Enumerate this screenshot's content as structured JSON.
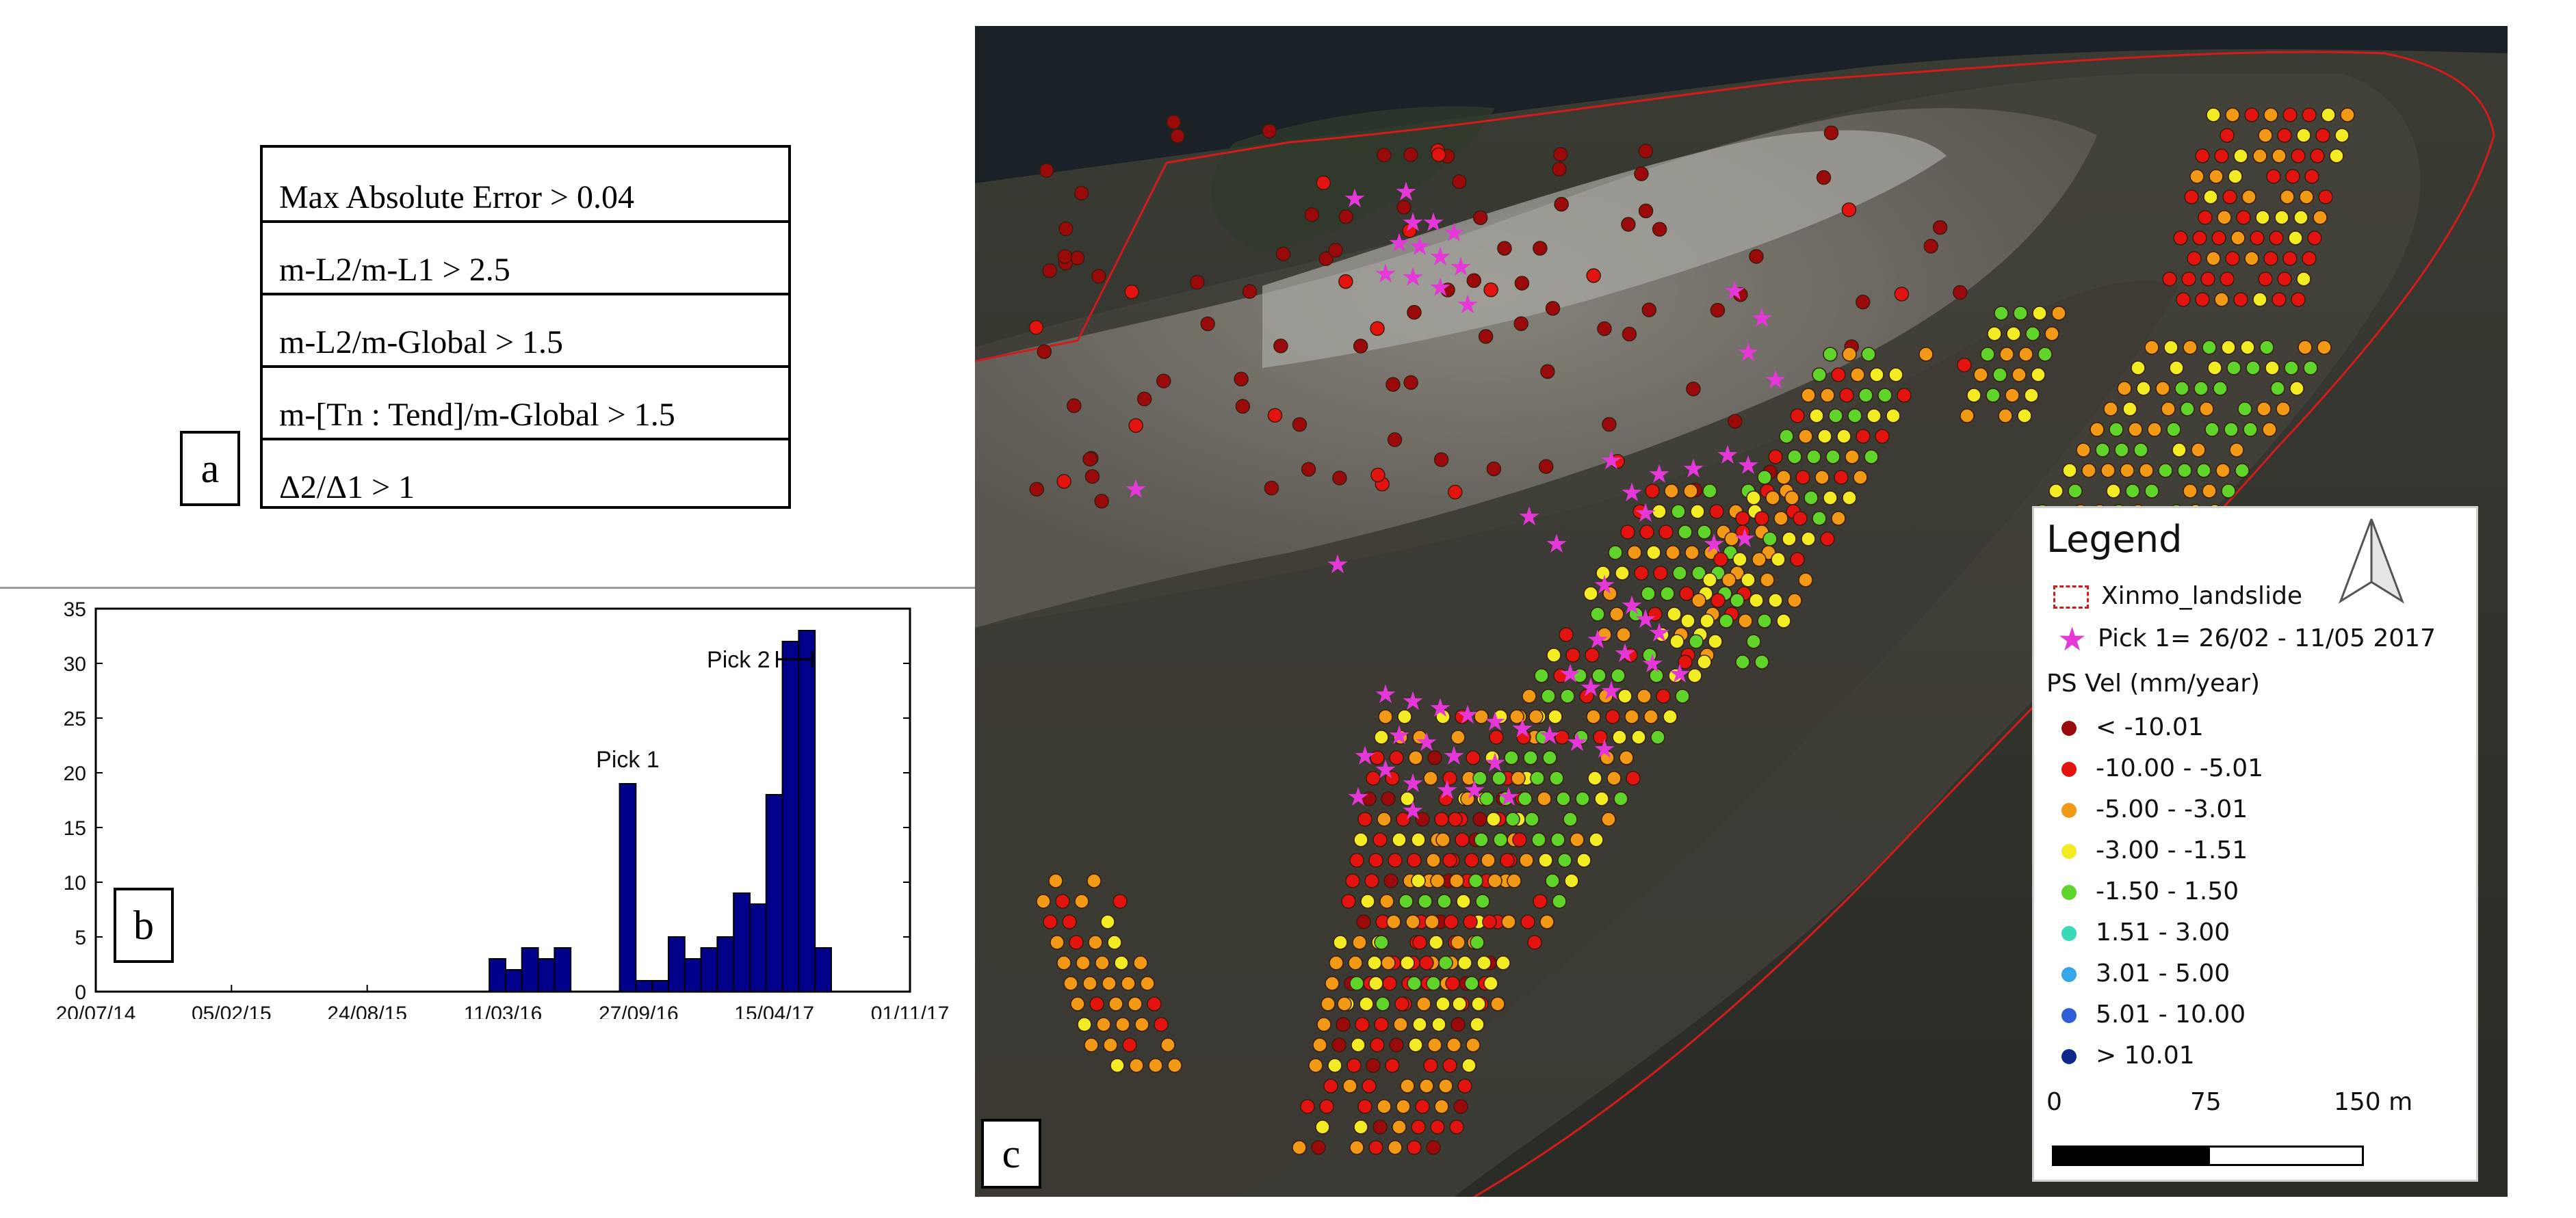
{
  "panel_a": {
    "label": "a",
    "criteria": [
      "Max  Absolute Error > 0.04",
      "m-L2/m-L1 > 2.5",
      "m-L2/m-Global > 1.5",
      "m-[Tn : Tend]/m-Global > 1.5",
      "Δ2/Δ1 > 1"
    ]
  },
  "panel_b": {
    "label": "b"
  },
  "chart_data": {
    "type": "bar",
    "title": "",
    "xlabel": "",
    "ylabel": "",
    "ylim": [
      0,
      35
    ],
    "y_ticks": [
      0,
      5,
      10,
      15,
      20,
      25,
      30,
      35
    ],
    "x_ticks": [
      "20/07/14",
      "05/02/15",
      "24/08/15",
      "11/03/16",
      "27/09/16",
      "15/04/17",
      "01/11/17"
    ],
    "x_range": [
      "20/07/14",
      "01/11/17"
    ],
    "bar_start_day": [
      580,
      604,
      628,
      652,
      676,
      700,
      724,
      772,
      796,
      820,
      844,
      868,
      892,
      916,
      940,
      964,
      988,
      1012,
      1036,
      1060,
      1084
    ],
    "bar_width_days": 24,
    "values": [
      3,
      2,
      4,
      3,
      4,
      0,
      0,
      19,
      1,
      1,
      5,
      3,
      4,
      5,
      9,
      8,
      18,
      32,
      33,
      4,
      0
    ],
    "bar_color": "#00008b",
    "annotations": [
      {
        "text": "Pick 1"
      },
      {
        "text": "Pick 2"
      }
    ]
  },
  "panel_c": {
    "label": "c",
    "legend": {
      "title": "Legend",
      "outline_label": "Xinmo_landslide",
      "pick_label": "Pick  1= 26/02 - 11/05 2017",
      "ps_heading": "PS Vel (mm/year)",
      "classes": [
        {
          "label": "< -10.01",
          "color": "#9b0a0a"
        },
        {
          "label": "-10.00 - -5.01",
          "color": "#e3140f"
        },
        {
          "label": "-5.00 - -3.01",
          "color": "#f29a17"
        },
        {
          "label": "-3.00 - -1.51",
          "color": "#f2ec24"
        },
        {
          "label": "-1.50 - 1.50",
          "color": "#5fd42a"
        },
        {
          "label": "1.51 - 3.00",
          "color": "#38d9b8"
        },
        {
          "label": "3.01 - 5.00",
          "color": "#35a6e8"
        },
        {
          "label": "5.01 - 10.00",
          "color": "#2f5ed6"
        },
        {
          "label": "> 10.01",
          "color": "#0d2a8a"
        }
      ],
      "scale": [
        "0",
        "75",
        "150 m"
      ]
    }
  }
}
